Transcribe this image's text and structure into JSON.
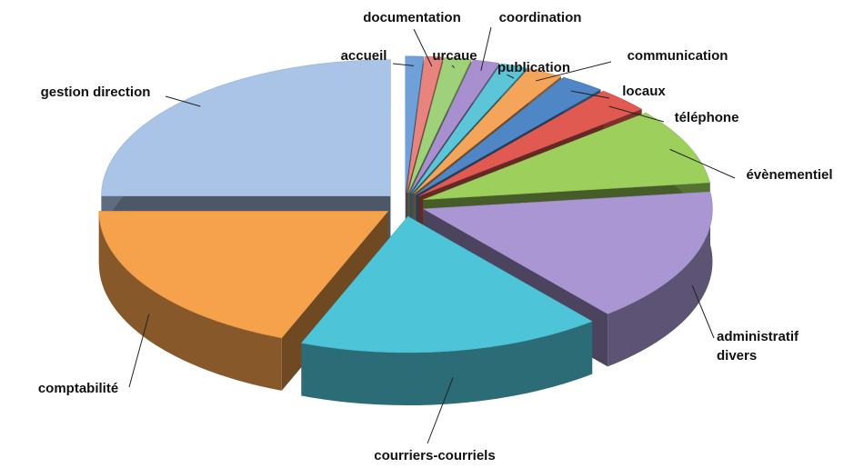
{
  "chart_data": {
    "type": "pie3d",
    "categories": [
      "accueil",
      "documentation",
      "urcaue",
      "coordination",
      "publication",
      "communication",
      "locaux",
      "téléphone",
      "évènementiel",
      "administratif divers",
      "courriers-courriels",
      "comptabilité",
      "gestion direction"
    ],
    "values": [
      1,
      1,
      1.5,
      1.5,
      1.5,
      2,
      2.5,
      3,
      9,
      16,
      17,
      19,
      25
    ],
    "colors": [
      "#6fa0d8",
      "#e8837d",
      "#9fd07a",
      "#a88fd0",
      "#5cc6d8",
      "#f5a55a",
      "#4f86c6",
      "#e05a52",
      "#9ccf5c",
      "#a996d3",
      "#4ec4d9",
      "#f6a24c",
      "#a9c4e6"
    ]
  }
}
